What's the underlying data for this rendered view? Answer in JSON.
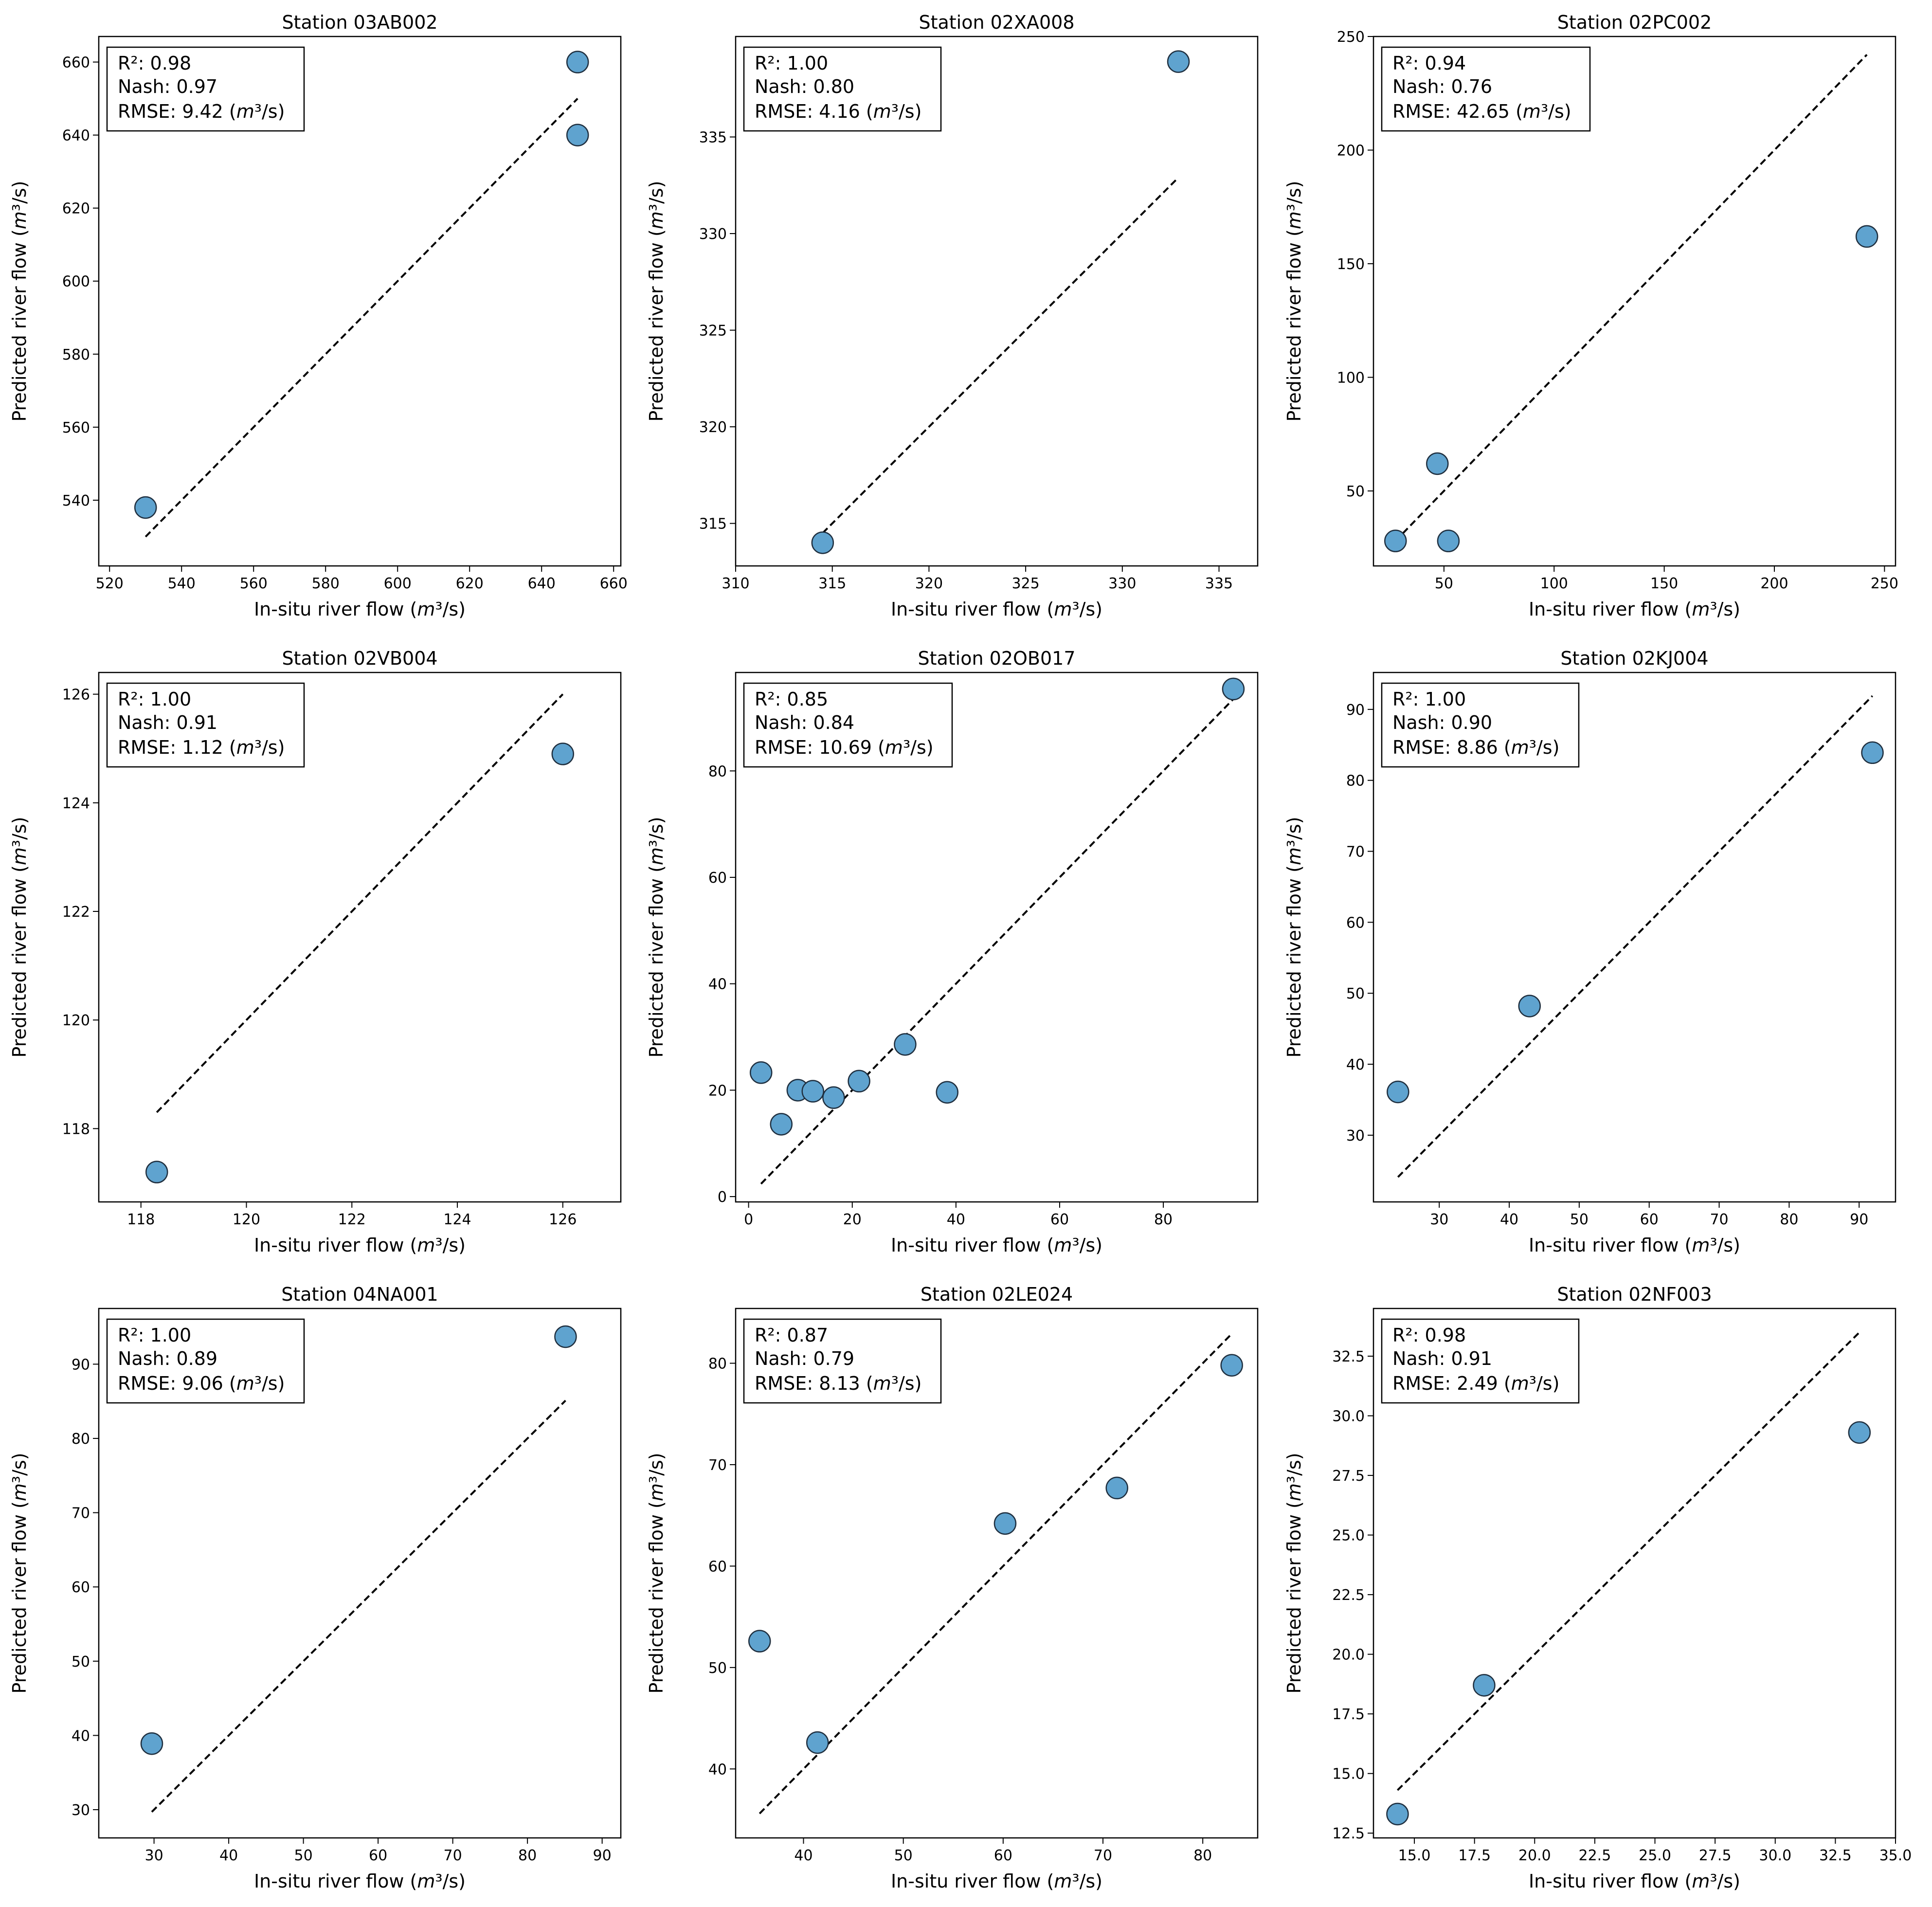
{
  "figure": {
    "x_label": "In-situ river flow",
    "y_label": "Predicted river flow",
    "unit_label": "(m³/s)",
    "colors": {
      "point_fill": "#5fa3cf",
      "point_edge": "#1f2f3f",
      "line": "#000000"
    }
  },
  "chart_data": [
    {
      "type": "scatter",
      "title": "Station 03AB002",
      "xlim": [
        517,
        662
      ],
      "ylim": [
        522,
        667
      ],
      "xticks": [
        520,
        540,
        560,
        580,
        600,
        620,
        640,
        660
      ],
      "yticks": [
        540,
        560,
        580,
        600,
        620,
        640,
        660
      ],
      "tick_labels_x": [
        "520",
        "540",
        "560",
        "580",
        "600",
        "620",
        "640",
        "660"
      ],
      "tick_labels_y": [
        "540",
        "560",
        "580",
        "600",
        "620",
        "640",
        "660"
      ],
      "stats": {
        "r2": "R²: 0.98",
        "nash": "Nash: 0.97",
        "rmse": "RMSE: 9.42"
      },
      "one_to_one": [
        530,
        650
      ],
      "x": [
        530,
        650,
        650
      ],
      "y": [
        538,
        660,
        640
      ]
    },
    {
      "type": "scatter",
      "title": "Station 02XA008",
      "xlim": [
        310,
        337
      ],
      "ylim": [
        312.8,
        340.2
      ],
      "xticks": [
        310,
        315,
        320,
        325,
        330,
        335
      ],
      "yticks": [
        315,
        320,
        325,
        330,
        335
      ],
      "tick_labels_x": [
        "310",
        "315",
        "320",
        "325",
        "330",
        "335"
      ],
      "tick_labels_y": [
        "315",
        "320",
        "325",
        "330",
        "335"
      ],
      "stats": {
        "r2": "R²: 1.00",
        "nash": "Nash: 0.80",
        "rmse": "RMSE: 4.16"
      },
      "one_to_one": [
        314.5,
        332.9
      ],
      "x": [
        314.5,
        332.9
      ],
      "y": [
        314.0,
        338.9
      ]
    },
    {
      "type": "scatter",
      "title": "Station 02PC002",
      "xlim": [
        18,
        255
      ],
      "ylim": [
        17,
        250
      ],
      "xticks": [
        50,
        100,
        150,
        200,
        250
      ],
      "yticks": [
        50,
        100,
        150,
        200,
        250
      ],
      "tick_labels_x": [
        "50",
        "100",
        "150",
        "200",
        "250"
      ],
      "tick_labels_y": [
        "50",
        "100",
        "150",
        "200",
        "250"
      ],
      "stats": {
        "r2": "R²: 0.94",
        "nash": "Nash: 0.76",
        "rmse": "RMSE: 42.65"
      },
      "one_to_one": [
        28,
        242
      ],
      "x": [
        28,
        47,
        52,
        242
      ],
      "y": [
        28,
        62,
        28,
        162
      ]
    },
    {
      "type": "scatter",
      "title": "Station 02VB004",
      "xlim": [
        117.2,
        127.1
      ],
      "ylim": [
        116.65,
        126.4
      ],
      "xticks": [
        118,
        120,
        122,
        124,
        126
      ],
      "yticks": [
        118,
        120,
        122,
        124,
        126
      ],
      "tick_labels_x": [
        "118",
        "120",
        "122",
        "124",
        "126"
      ],
      "tick_labels_y": [
        "118",
        "120",
        "122",
        "124",
        "126"
      ],
      "stats": {
        "r2": "R²: 1.00",
        "nash": "Nash: 0.91",
        "rmse": "RMSE: 1.12"
      },
      "one_to_one": [
        118.3,
        126.0
      ],
      "x": [
        118.3,
        126.0
      ],
      "y": [
        117.2,
        124.9
      ]
    },
    {
      "type": "scatter",
      "title": "Station 02OB017",
      "xlim": [
        -2.5,
        98.2
      ],
      "ylim": [
        -1,
        98.5
      ],
      "xticks": [
        0,
        20,
        40,
        60,
        80
      ],
      "yticks": [
        0,
        20,
        40,
        60,
        80
      ],
      "tick_labels_x": [
        "0",
        "20",
        "40",
        "60",
        "80"
      ],
      "tick_labels_y": [
        "0",
        "20",
        "40",
        "60",
        "80"
      ],
      "stats": {
        "r2": "R²: 0.85",
        "nash": "Nash: 0.84",
        "rmse": "RMSE: 10.69"
      },
      "one_to_one": [
        2.4,
        93.5
      ],
      "x": [
        2.4,
        6.3,
        9.5,
        12.4,
        16.4,
        21.3,
        30.2,
        38.3,
        93.5
      ],
      "y": [
        23.3,
        13.6,
        20.0,
        19.8,
        18.6,
        21.7,
        28.6,
        19.6,
        95.4
      ]
    },
    {
      "type": "scatter",
      "title": "Station 02KJ004",
      "xlim": [
        20.6,
        95.2
      ],
      "ylim": [
        20.6,
        95.2
      ],
      "xticks": [
        30,
        40,
        50,
        60,
        70,
        80,
        90
      ],
      "yticks": [
        30,
        40,
        50,
        60,
        70,
        80,
        90
      ],
      "tick_labels_x": [
        "30",
        "40",
        "50",
        "60",
        "70",
        "80",
        "90"
      ],
      "tick_labels_y": [
        "30",
        "40",
        "50",
        "60",
        "70",
        "80",
        "90"
      ],
      "stats": {
        "r2": "R²: 1.00",
        "nash": "Nash: 0.90",
        "rmse": "RMSE: 8.86"
      },
      "one_to_one": [
        24.1,
        91.9
      ],
      "x": [
        24.1,
        42.9,
        91.9
      ],
      "y": [
        36.1,
        48.2,
        83.9
      ]
    },
    {
      "type": "scatter",
      "title": "Station 04NA001",
      "xlim": [
        22.6,
        92.5
      ],
      "ylim": [
        26.2,
        97.5
      ],
      "xticks": [
        30,
        40,
        50,
        60,
        70,
        80,
        90
      ],
      "yticks": [
        30,
        40,
        50,
        60,
        70,
        80,
        90
      ],
      "tick_labels_x": [
        "30",
        "40",
        "50",
        "60",
        "70",
        "80",
        "90"
      ],
      "tick_labels_y": [
        "30",
        "40",
        "50",
        "60",
        "70",
        "80",
        "90"
      ],
      "stats": {
        "r2": "R²: 1.00",
        "nash": "Nash: 0.89",
        "rmse": "RMSE: 9.06"
      },
      "one_to_one": [
        29.7,
        85.1
      ],
      "x": [
        29.7,
        85.1
      ],
      "y": [
        38.9,
        93.7
      ]
    },
    {
      "type": "scatter",
      "title": "Station 02LE024",
      "xlim": [
        33.2,
        85.5
      ],
      "ylim": [
        33.2,
        85.4
      ],
      "xticks": [
        40,
        50,
        60,
        70,
        80
      ],
      "yticks": [
        40,
        50,
        60,
        70,
        80
      ],
      "tick_labels_x": [
        "40",
        "50",
        "60",
        "70",
        "80"
      ],
      "tick_labels_y": [
        "40",
        "50",
        "60",
        "70",
        "80"
      ],
      "stats": {
        "r2": "R²: 0.87",
        "nash": "Nash: 0.79",
        "rmse": "RMSE: 8.13"
      },
      "one_to_one": [
        35.6,
        82.9
      ],
      "x": [
        35.6,
        41.4,
        60.2,
        71.4,
        82.9
      ],
      "y": [
        52.6,
        42.6,
        64.2,
        67.7,
        79.8
      ]
    },
    {
      "type": "scatter",
      "title": "Station 02NF003",
      "xlim": [
        13.3,
        35.0
      ],
      "ylim": [
        12.3,
        34.5
      ],
      "xticks": [
        15.0,
        17.5,
        20.0,
        22.5,
        25.0,
        27.5,
        30.0,
        32.5,
        35.0
      ],
      "yticks": [
        12.5,
        15.0,
        17.5,
        20.0,
        22.5,
        25.0,
        27.5,
        30.0,
        32.5
      ],
      "tick_labels_x": [
        "15.0",
        "17.5",
        "20.0",
        "22.5",
        "25.0",
        "27.5",
        "30.0",
        "32.5",
        "35.0"
      ],
      "tick_labels_y": [
        "12.5",
        "15.0",
        "17.5",
        "20.0",
        "22.5",
        "25.0",
        "27.5",
        "30.0",
        "32.5"
      ],
      "stats": {
        "r2": "R²: 0.98",
        "nash": "Nash: 0.91",
        "rmse": "RMSE: 2.49"
      },
      "one_to_one": [
        14.3,
        33.5
      ],
      "x": [
        14.3,
        17.9,
        33.5
      ],
      "y": [
        13.3,
        18.7,
        29.3
      ]
    }
  ]
}
